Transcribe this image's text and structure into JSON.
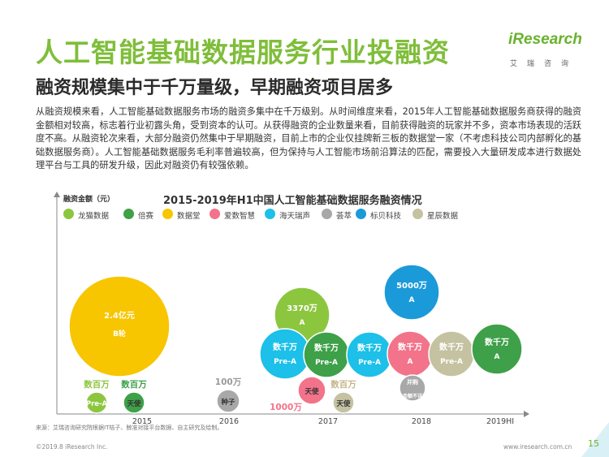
{
  "header": {
    "title": "人工智能基础数据服务行业投融资",
    "subtitle": "融资规模集中于千万量级，早期融资项目居多",
    "logo_text": "iResearch",
    "logo_cn": "艾瑞咨询"
  },
  "body": {
    "paragraph": "从融资规模来看，人工智能基础数据服务市场的融资多集中在千万级别。从时间维度来看，2015年人工智能基础数据服务商获得的融资金额相对较高，标志着行业初露头角，受到资本的认可。从获得融资的企业数量来看，目前获得融资的玩家并不多，资本市场表现的活跃度不高。从融资轮次来看，大部分融资仍然集中于早期融资，目前上市的企业仅挂牌新三板的数据堂一家（不考虑科技公司内部孵化的基础数据服务商）。人工智能基础数据服务毛利率普遍较高，但为保持与人工智能市场前沿算法的匹配，需要投入大量研发成本进行数据处理平台与工具的研发升级，因此对融资仍有较强依赖。"
  },
  "chart_data": {
    "type": "bubble",
    "title": "2015-2019年H1中国人工智能基础数据服务融资情况",
    "ylabel": "融资金额（元）",
    "x_categories": [
      "2015",
      "2016",
      "2017",
      "2018",
      "2019HI"
    ],
    "legend": [
      {
        "name": "龙猫数据",
        "color": "#8cc63f"
      },
      {
        "name": "倍赛",
        "color": "#3ea048"
      },
      {
        "name": "数据堂",
        "color": "#f7c600"
      },
      {
        "name": "爱数智慧",
        "color": "#f2738a"
      },
      {
        "name": "海天瑞声",
        "color": "#1cc0e8"
      },
      {
        "name": "荟萃",
        "color": "#a8a8a8"
      },
      {
        "name": "标贝科技",
        "color": "#1b9ad9"
      },
      {
        "name": "星辰数据",
        "color": "#c5c2a2"
      }
    ],
    "bubbles": [
      {
        "company": "数据堂",
        "year": "2015",
        "amount": "2.4亿元",
        "round": "B轮",
        "label_inside": true
      },
      {
        "company": "龙猫数据",
        "year": "2015",
        "amount": "数百万",
        "round": "Pre-A",
        "label_inside": false
      },
      {
        "company": "倍赛",
        "year": "2015",
        "amount": "数百万",
        "round": "天使",
        "label_inside": false
      },
      {
        "company": "荟萃",
        "year": "2016",
        "amount": "100万",
        "round": "种子",
        "label_inside": false
      },
      {
        "company": "龙猫数据",
        "year": "2017",
        "amount": "3370万",
        "round": "A",
        "label_inside": true
      },
      {
        "company": "海天瑞声",
        "year": "2017",
        "amount": "数千万",
        "round": "Pre-A",
        "label_inside": true
      },
      {
        "company": "倍赛",
        "year": "2017",
        "amount": "数千万",
        "round": "Pre-A",
        "label_inside": true
      },
      {
        "company": "海天瑞声",
        "year": "2017",
        "amount": "数千万",
        "round": "Pre-A",
        "label_inside": true
      },
      {
        "company": "爱数智慧",
        "year": "2017",
        "amount": "1000万",
        "round": "天使",
        "label_inside": false
      },
      {
        "company": "星辰数据",
        "year": "2017",
        "amount": "数百万",
        "round": "天使",
        "label_inside": false
      },
      {
        "company": "标贝科技",
        "year": "2018",
        "amount": "5000万",
        "round": "A",
        "label_inside": true
      },
      {
        "company": "爱数智慧",
        "year": "2018",
        "amount": "数千万",
        "round": "A",
        "label_inside": true
      },
      {
        "company": "星辰数据",
        "year": "2018",
        "amount": "数千万",
        "round": "Pre-A",
        "label_inside": true
      },
      {
        "company": "荟萃",
        "year": "2018",
        "amount": "并购",
        "round": "(金额不详)",
        "label_inside": true
      },
      {
        "company": "倍赛",
        "year": "2019HI",
        "amount": "数千万",
        "round": "A",
        "label_inside": true
      }
    ]
  },
  "footer": {
    "source": "来源：艾瑞咨询研究院根据IT桔子、鲸准对接平台数据、自主研究及绘制。",
    "copyright": "©2019.8 iResearch Inc.",
    "website": "www.iresearch.com.cn",
    "page": "15"
  }
}
